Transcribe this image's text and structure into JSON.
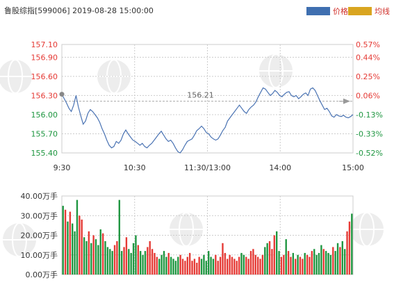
{
  "header": {
    "title": "鲁股综指[599006] 2019-08-28 15:00:00"
  },
  "legend": [
    {
      "label": "价格",
      "color": "#3f6fb0"
    },
    {
      "label": "均线",
      "color": "#d9a520"
    }
  ],
  "colors": {
    "price_line": "#4a73b3",
    "up": "#e53a35",
    "down": "#1e9640",
    "grid": "#cccccc",
    "axis": "#999999"
  },
  "chart_data": [
    {
      "type": "line",
      "name": "price",
      "x_ticks": [
        "9:30",
        "10:30",
        "11:30/13:00",
        "14:00",
        "15:00"
      ],
      "y_ticks": [
        "157.10",
        "156.90",
        "156.60",
        "156.30",
        "156.00",
        "155.70",
        "155.40"
      ],
      "y_tick_values": [
        157.1,
        156.9,
        156.6,
        156.3,
        156.0,
        155.7,
        155.4
      ],
      "right_ticks": [
        "0.57%",
        "0.44%",
        "0.25%",
        "0.06%",
        "-0.13%",
        "-0.33%",
        "-0.52%"
      ],
      "ylim": [
        155.4,
        157.1
      ],
      "prev_close": 156.21,
      "prev_close_label": "156.21",
      "values": [
        156.32,
        156.25,
        156.18,
        156.1,
        156.05,
        156.15,
        156.3,
        156.12,
        155.98,
        155.85,
        155.9,
        156.02,
        156.08,
        156.05,
        156.0,
        155.95,
        155.88,
        155.78,
        155.7,
        155.6,
        155.52,
        155.48,
        155.5,
        155.58,
        155.55,
        155.6,
        155.7,
        155.76,
        155.7,
        155.65,
        155.6,
        155.58,
        155.55,
        155.52,
        155.55,
        155.5,
        155.48,
        155.52,
        155.55,
        155.6,
        155.65,
        155.7,
        155.74,
        155.68,
        155.62,
        155.58,
        155.6,
        155.55,
        155.48,
        155.42,
        155.4,
        155.45,
        155.52,
        155.58,
        155.6,
        155.62,
        155.68,
        155.75,
        155.78,
        155.82,
        155.78,
        155.72,
        155.7,
        155.65,
        155.62,
        155.6,
        155.62,
        155.68,
        155.75,
        155.8,
        155.9,
        155.95,
        156.0,
        156.05,
        156.1,
        156.15,
        156.1,
        156.05,
        156.02,
        156.08,
        156.12,
        156.15,
        156.2,
        156.28,
        156.35,
        156.42,
        156.4,
        156.35,
        156.3,
        156.33,
        156.38,
        156.35,
        156.3,
        156.28,
        156.32,
        156.35,
        156.36,
        156.3,
        156.28,
        156.3,
        156.25,
        156.28,
        156.32,
        156.34,
        156.3,
        156.4,
        156.42,
        156.38,
        156.3,
        156.22,
        156.15,
        156.08,
        156.1,
        156.05,
        155.98,
        155.96,
        156.0,
        155.98,
        155.97,
        155.99,
        155.96,
        155.95,
        155.97,
        156.0
      ]
    },
    {
      "type": "bar",
      "name": "volume",
      "unit_label": "万手",
      "y_ticks": [
        "40.00万手",
        "30.00万手",
        "20.00万手",
        "10.00万手",
        "0.00万手"
      ],
      "y_tick_values": [
        40,
        30,
        20,
        10,
        0
      ],
      "ylim": [
        0,
        40
      ],
      "values": [
        35,
        33,
        27,
        32,
        26,
        22,
        38,
        30,
        28,
        19,
        17,
        22,
        16,
        20,
        18,
        15,
        23,
        21,
        17,
        14,
        13,
        12,
        15,
        17,
        38,
        12,
        14,
        19,
        13,
        11,
        16,
        20,
        15,
        12,
        10,
        12,
        14,
        17,
        13,
        11,
        9,
        8,
        10,
        12,
        9,
        11,
        9,
        8,
        7,
        9,
        10,
        8,
        7,
        9,
        11,
        7,
        8,
        6,
        9,
        8,
        10,
        7,
        12,
        9,
        8,
        10,
        7,
        9,
        16,
        11,
        8,
        10,
        9,
        8,
        7,
        9,
        11,
        10,
        9,
        8,
        12,
        13,
        10,
        9,
        8,
        10,
        14,
        16,
        17,
        13,
        20,
        22,
        12,
        9,
        10,
        18,
        12,
        9,
        11,
        8,
        10,
        9,
        8,
        11,
        10,
        9,
        12,
        13,
        10,
        11,
        15,
        13,
        12,
        11,
        10,
        14,
        12,
        16,
        14,
        17,
        13,
        22,
        27,
        31
      ],
      "up_flags": [
        0,
        1,
        0,
        1,
        0,
        0,
        0,
        1,
        1,
        0,
        0,
        1,
        0,
        1,
        0,
        0,
        0,
        1,
        0,
        0,
        0,
        0,
        1,
        1,
        0,
        0,
        1,
        1,
        0,
        0,
        0,
        0,
        1,
        0,
        0,
        0,
        1,
        1,
        1,
        1,
        1,
        0,
        0,
        0,
        0,
        1,
        0,
        0,
        0,
        0,
        1,
        1,
        1,
        1,
        1,
        1,
        1,
        1,
        1,
        0,
        0,
        0,
        0,
        0,
        0,
        1,
        1,
        1,
        1,
        1,
        1,
        1,
        1,
        1,
        1,
        1,
        0,
        0,
        1,
        1,
        1,
        1,
        1,
        1,
        1,
        1,
        0,
        0,
        1,
        1,
        1,
        0,
        0,
        1,
        1,
        0,
        1,
        1,
        0,
        1,
        0,
        1,
        1,
        0,
        1,
        1,
        1,
        0,
        0,
        0,
        0,
        1,
        0,
        0,
        0,
        1,
        0,
        0,
        1,
        0,
        0,
        1,
        1,
        0
      ]
    }
  ]
}
